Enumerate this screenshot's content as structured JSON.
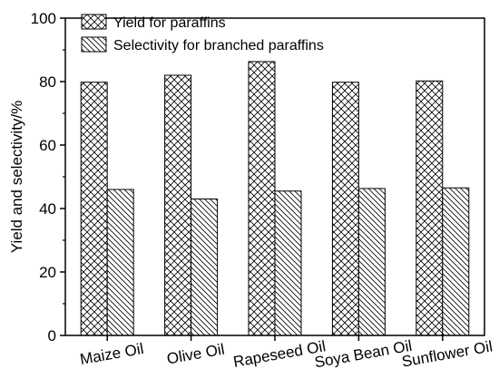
{
  "chart_data": {
    "type": "bar",
    "categories": [
      "Maize Oil",
      "Olive Oil",
      "Rapeseed Oil",
      "Soya Bean Oil",
      "Sunflower Oil"
    ],
    "series": [
      {
        "name": "Yield for paraffins",
        "values": [
          79.8,
          82.0,
          86.3,
          79.8,
          80.2
        ],
        "pattern": "crosshatch"
      },
      {
        "name": "Selectivity for branched paraffins",
        "values": [
          46.0,
          43.0,
          45.5,
          46.3,
          46.5
        ],
        "pattern": "diagonal"
      }
    ],
    "title": "",
    "xlabel": "",
    "ylabel": "Yield and selectivity/%",
    "ylim": [
      0,
      100
    ],
    "yticks": [
      0,
      20,
      40,
      60,
      80,
      100
    ],
    "grid": false,
    "legend_position": "top-left"
  }
}
